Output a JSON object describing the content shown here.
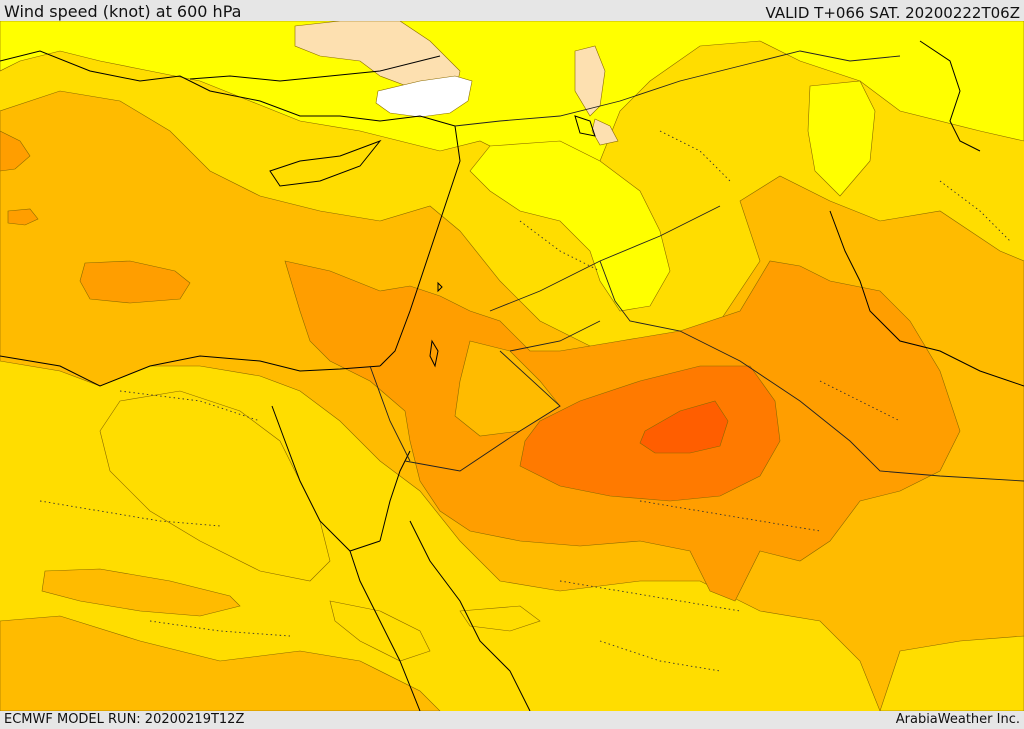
{
  "header": {
    "title": "Wind speed (knot) at 600 hPa",
    "valid": "VALID T+066 SAT. 20200222T06Z"
  },
  "footer": {
    "model_run": "ECMWF MODEL RUN: 20200219T12Z",
    "credit": "ArabiaWeather Inc."
  },
  "map": {
    "variable": "wind speed",
    "level": "600 hPa",
    "units": "knot",
    "colors": {
      "lowest": "#ffffff",
      "low": "#fde0b0",
      "light": "#ffff00",
      "moderate": "#ffdd00",
      "medium": "#ffbb00",
      "strong": "#ff9e00",
      "stronger": "#ff7a00",
      "strongest": "#ff5e00",
      "coastline": "#000000",
      "border": "#222222"
    }
  }
}
